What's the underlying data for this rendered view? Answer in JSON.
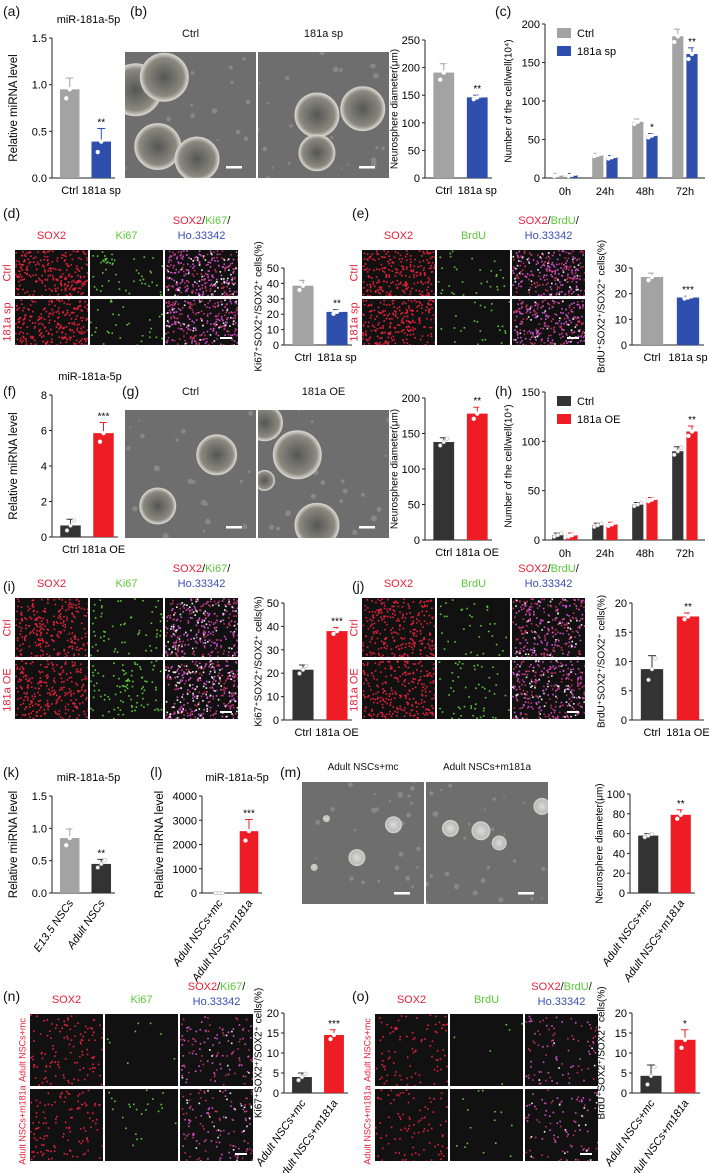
{
  "colors": {
    "ctrl_gray": "#a3a3a3",
    "sponge_blue": "#2f4fae",
    "ctrl_dark": "#333333",
    "oe_red": "#ee1d25",
    "sox2": "#e8203a",
    "ki67": "#5cc83a",
    "brdu": "#5cc83a",
    "hoechst": "#3a4fb0"
  },
  "panels": {
    "a": {
      "letter": "(a)"
    },
    "b": {
      "letter": "(b)",
      "img_labels": [
        "Ctrl",
        "181a sp"
      ]
    },
    "c": {
      "letter": "(c)"
    },
    "d": {
      "letter": "(d)",
      "col_labels": [
        "SOX2",
        "Ki67"
      ],
      "merge": [
        "SOX2",
        "/",
        "Ki67",
        "/",
        "Ho.33342"
      ],
      "row_labels": [
        "Ctrl",
        "181a sp"
      ]
    },
    "e": {
      "letter": "(e)",
      "col_labels": [
        "SOX2",
        "BrdU"
      ],
      "merge": [
        "SOX2",
        "/",
        "BrdU",
        "/",
        "Ho.33342"
      ],
      "row_labels": [
        "Ctrl",
        "181a sp"
      ]
    },
    "f": {
      "letter": "(f)"
    },
    "g": {
      "letter": "(g)",
      "img_labels": [
        "Ctrl",
        "181a OE"
      ]
    },
    "h": {
      "letter": "(h)"
    },
    "i": {
      "letter": "(i)",
      "col_labels": [
        "SOX2",
        "Ki67"
      ],
      "merge": [
        "SOX2",
        "/",
        "Ki67",
        "/",
        "Ho.33342"
      ],
      "row_labels": [
        "Ctrl",
        "181a OE"
      ]
    },
    "j": {
      "letter": "(j)",
      "col_labels": [
        "SOX2",
        "BrdU"
      ],
      "merge": [
        "SOX2",
        "/",
        "BrdU",
        "/",
        "Ho.33342"
      ],
      "row_labels": [
        "Ctrl",
        "181a OE"
      ]
    },
    "k": {
      "letter": "(k)"
    },
    "l": {
      "letter": "(l)"
    },
    "m": {
      "letter": "(m)",
      "img_labels": [
        "Adult NSCs+mc",
        "Adult NSCs+m181a"
      ]
    },
    "n": {
      "letter": "(n)",
      "col_labels": [
        "SOX2",
        "Ki67"
      ],
      "merge": [
        "SOX2",
        "/",
        "Ki67",
        "/",
        "Ho.33342"
      ],
      "row_labels": [
        "Adult NSCs+mc",
        "Adult NSCs+m181a"
      ]
    },
    "o": {
      "letter": "(o)",
      "col_labels": [
        "SOX2",
        "BrdU"
      ],
      "merge": [
        "SOX2",
        "/",
        "BrdU",
        "/",
        "Ho.33342"
      ],
      "row_labels": [
        "Adult NSCs+mc",
        "Adult NSCs+m181a"
      ]
    }
  },
  "chart_data": [
    {
      "id": "a",
      "type": "bar",
      "title": "miR-181a-5p",
      "ylabel": "Relative miRNA level",
      "categories": [
        "Ctrl",
        "181a sp"
      ],
      "values": [
        0.95,
        0.39
      ],
      "errors": [
        0.12,
        0.14
      ],
      "sig": [
        "",
        "**"
      ],
      "ylim": [
        0,
        1.5
      ],
      "yticks": [
        "0.0",
        "0.5",
        "1.0",
        "1.5"
      ],
      "colors": [
        "#a3a3a3",
        "#2f4fae"
      ]
    },
    {
      "id": "b",
      "type": "bar",
      "ylabel": "Neurosphere diameter(μm)",
      "categories": [
        "Ctrl",
        "181a sp"
      ],
      "values": [
        191,
        146
      ],
      "errors": [
        16,
        4
      ],
      "sig": [
        "",
        "**"
      ],
      "ylim": [
        0,
        250
      ],
      "yticks": [
        "0",
        "50",
        "100",
        "150",
        "200",
        "250"
      ],
      "colors": [
        "#a3a3a3",
        "#2f4fae"
      ]
    },
    {
      "id": "c",
      "type": "grouped-bar",
      "ylabel": "Number of the cell/well(10⁴)",
      "categories": [
        "0h",
        "24h",
        "48h",
        "72h"
      ],
      "series": [
        {
          "name": "Ctrl",
          "values": [
            4,
            30,
            73,
            184
          ],
          "color": "#a3a3a3"
        },
        {
          "name": "181a sp",
          "values": [
            4,
            27,
            55,
            161
          ],
          "color": "#2f4fae"
        }
      ],
      "sig": [
        [
          "",
          "",
          "",
          ""
        ],
        [
          "",
          "",
          "*",
          "**"
        ]
      ],
      "ylim": [
        0,
        200
      ],
      "yticks": [
        "0",
        "50",
        "100",
        "150",
        "200"
      ],
      "legend": "top-left"
    },
    {
      "id": "d",
      "type": "bar",
      "ylabel": "Ki67⁺SOX2⁺/SOX2⁺ cells(%)",
      "categories": [
        "Ctrl",
        "181a sp"
      ],
      "values": [
        38.5,
        21.5
      ],
      "errors": [
        3.5,
        1.5
      ],
      "sig": [
        "",
        "**"
      ],
      "ylim": [
        0,
        50
      ],
      "yticks": [
        "0",
        "10",
        "20",
        "30",
        "40",
        "50"
      ],
      "colors": [
        "#a3a3a3",
        "#2f4fae"
      ]
    },
    {
      "id": "e",
      "type": "bar",
      "ylabel": "BrdU⁺SOX2⁺/SOX2⁺ cells(%)",
      "categories": [
        "Ctrl",
        "181a sp"
      ],
      "values": [
        26.5,
        18.5
      ],
      "errors": [
        1.5,
        0.5
      ],
      "sig": [
        "",
        "***"
      ],
      "ylim": [
        0,
        30
      ],
      "yticks": [
        "0",
        "10",
        "20",
        "30"
      ],
      "colors": [
        "#a3a3a3",
        "#2f4fae"
      ]
    },
    {
      "id": "f",
      "type": "bar",
      "title": "miR-181a-5p",
      "ylabel": "Relative miRNA level",
      "categories": [
        "Ctrl",
        "181a OE"
      ],
      "values": [
        0.65,
        5.85
      ],
      "errors": [
        0.35,
        0.6
      ],
      "sig": [
        "",
        "***"
      ],
      "ylim": [
        0,
        8
      ],
      "yticks": [
        "0",
        "2",
        "4",
        "6",
        "8"
      ],
      "colors": [
        "#333333",
        "#ee1d25"
      ]
    },
    {
      "id": "g",
      "type": "bar",
      "ylabel": "Neurosphere diameter(μm)",
      "categories": [
        "Ctrl",
        "181a OE"
      ],
      "values": [
        138,
        178
      ],
      "errors": [
        6,
        9
      ],
      "sig": [
        "",
        "**"
      ],
      "ylim": [
        0,
        200
      ],
      "yticks": [
        "0",
        "50",
        "100",
        "150",
        "200"
      ],
      "colors": [
        "#333333",
        "#ee1d25"
      ]
    },
    {
      "id": "h",
      "type": "grouped-bar",
      "ylabel": "Number of the cell/well(10⁴)",
      "categories": [
        "0h",
        "24h",
        "48h",
        "72h"
      ],
      "series": [
        {
          "name": "Ctrl",
          "values": [
            5,
            15,
            36,
            90
          ],
          "color": "#333333"
        },
        {
          "name": "181a OE",
          "values": [
            5,
            16,
            41,
            110
          ],
          "color": "#ee1d25"
        }
      ],
      "sig": [
        [
          "",
          "",
          "",
          ""
        ],
        [
          "",
          "",
          "",
          "**"
        ]
      ],
      "ylim": [
        0,
        150
      ],
      "yticks": [
        "0",
        "50",
        "100",
        "150"
      ],
      "legend": "top-left"
    },
    {
      "id": "i",
      "type": "bar",
      "ylabel": "Ki67⁺SOX2⁺/SOX2⁺ cells(%)",
      "categories": [
        "Ctrl",
        "181a OE"
      ],
      "values": [
        21.5,
        38
      ],
      "errors": [
        2,
        1.5
      ],
      "sig": [
        "",
        "***"
      ],
      "ylim": [
        0,
        50
      ],
      "yticks": [
        "0",
        "10",
        "20",
        "30",
        "40",
        "50"
      ],
      "colors": [
        "#333333",
        "#ee1d25"
      ]
    },
    {
      "id": "j",
      "type": "bar",
      "ylabel": "BrdU⁺SOX2⁺/SOX2⁺ cells(%)",
      "categories": [
        "Ctrl",
        "181a OE"
      ],
      "values": [
        8.7,
        17.7
      ],
      "errors": [
        2.3,
        0.6
      ],
      "sig": [
        "",
        "**"
      ],
      "ylim": [
        0,
        20
      ],
      "yticks": [
        "0",
        "5",
        "10",
        "15",
        "20"
      ],
      "colors": [
        "#333333",
        "#ee1d25"
      ]
    },
    {
      "id": "k",
      "type": "bar",
      "title": "miR-181a-5p",
      "ylabel": "Relative miRNA level",
      "categories": [
        "E13.5 NSCs",
        "Adult NSCs"
      ],
      "values": [
        0.85,
        0.45
      ],
      "errors": [
        0.14,
        0.07
      ],
      "sig": [
        "",
        "**"
      ],
      "ylim": [
        0,
        1.5
      ],
      "yticks": [
        "0.0",
        "0.5",
        "1.0",
        "1.5"
      ],
      "colors": [
        "#a3a3a3",
        "#333333"
      ]
    },
    {
      "id": "l",
      "type": "bar",
      "title": "miR-181a-5p",
      "ylabel": "Relative miRNA level",
      "categories": [
        "Adult NSCs+mc",
        "Adult NSCs+m181a"
      ],
      "values": [
        1,
        2550
      ],
      "errors": [
        0,
        480
      ],
      "sig": [
        "",
        "***"
      ],
      "ylim": [
        0,
        4000
      ],
      "yticks": [
        "0",
        "1000",
        "2000",
        "3000",
        "4000"
      ],
      "colors": [
        "#333333",
        "#ee1d25"
      ]
    },
    {
      "id": "m",
      "type": "bar",
      "ylabel": "Neurosphere diameter(μm)",
      "categories": [
        "Adult NSCs+mc",
        "Adult NSCs+m181a"
      ],
      "values": [
        58,
        79
      ],
      "errors": [
        2,
        5
      ],
      "sig": [
        "",
        "**"
      ],
      "ylim": [
        0,
        100
      ],
      "yticks": [
        "0",
        "20",
        "40",
        "60",
        "80",
        "100"
      ],
      "colors": [
        "#333333",
        "#ee1d25"
      ]
    },
    {
      "id": "n",
      "type": "bar",
      "ylabel": "Ki67⁺SOX2⁺/SOX2⁺ cells(%)",
      "categories": [
        "Adult NSCs+mc",
        "Adult NSCs+m181a"
      ],
      "values": [
        4,
        14.5
      ],
      "errors": [
        1,
        1.3
      ],
      "sig": [
        "",
        "***"
      ],
      "ylim": [
        0,
        20
      ],
      "yticks": [
        "0",
        "5",
        "10",
        "15",
        "20"
      ],
      "colors": [
        "#333333",
        "#ee1d25"
      ]
    },
    {
      "id": "o",
      "type": "bar",
      "ylabel": "BrdU⁺SOX2⁺/SOX2⁺ cells(%)",
      "categories": [
        "Adult NSCs+mc",
        "Adult NSCs+m181a"
      ],
      "values": [
        4.3,
        13.3
      ],
      "errors": [
        2.7,
        2.5
      ],
      "sig": [
        "",
        "*"
      ],
      "ylim": [
        0,
        20
      ],
      "yticks": [
        "0",
        "5",
        "10",
        "15",
        "20"
      ],
      "colors": [
        "#333333",
        "#ee1d25"
      ]
    }
  ]
}
